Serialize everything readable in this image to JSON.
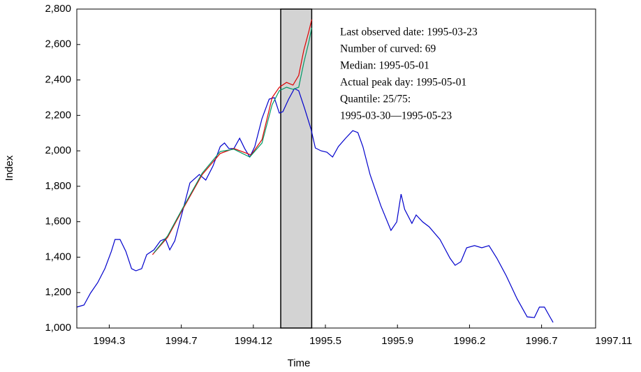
{
  "chart_data": {
    "type": "line",
    "x_label": "Time",
    "y_label": "Index",
    "xlim": [
      0,
      720
    ],
    "xticks": [
      {
        "value": 45,
        "label": "1994.3"
      },
      {
        "value": 145,
        "label": "1994.7"
      },
      {
        "value": 245,
        "label": "1994.12"
      },
      {
        "value": 345,
        "label": "1995.5"
      },
      {
        "value": 445,
        "label": "1995.9"
      },
      {
        "value": 545,
        "label": "1996.2"
      },
      {
        "value": 645,
        "label": "1996.7"
      },
      {
        "value": 745,
        "label": "1997.11"
      }
    ],
    "ylim": [
      1000,
      2800
    ],
    "yticks": [
      {
        "value": 1000,
        "label": "1,000"
      },
      {
        "value": 1200,
        "label": "1,200"
      },
      {
        "value": 1400,
        "label": "1,400"
      },
      {
        "value": 1600,
        "label": "1,600"
      },
      {
        "value": 1800,
        "label": "1,800"
      },
      {
        "value": 2000,
        "label": "2,000"
      },
      {
        "value": 2200,
        "label": "2,200"
      },
      {
        "value": 2400,
        "label": "2,400"
      },
      {
        "value": 2600,
        "label": "2,600"
      },
      {
        "value": 2800,
        "label": "2,800"
      }
    ],
    "shade": [
      283,
      326
    ],
    "annotations": [
      "Last observed date: 1995-03-23",
      "Number of curved: 69",
      "Median: 1995-05-01",
      "Actual peak day: 1995-05-01",
      "Quantile: 25/75:",
      "1995-03-30—1995-05-23"
    ],
    "series": [
      {
        "color": "#0000cc",
        "x": [
          0,
          10,
          19,
          29,
          39,
          48,
          53,
          60,
          68,
          76,
          82,
          90,
          97,
          107,
          116,
          123,
          129,
          136,
          147,
          157,
          170,
          179,
          189,
          199,
          205,
          211,
          218,
          226,
          233,
          240,
          247,
          257,
          267,
          274,
          281,
          286,
          294,
          302,
          308,
          316,
          325,
          331,
          339,
          347,
          355,
          363,
          373,
          383,
          390,
          397,
          407,
          422,
          436,
          444,
          450,
          455,
          465,
          471,
          480,
          489,
          504,
          518,
          525,
          533,
          541,
          552,
          562,
          572,
          583,
          596,
          611,
          625,
          635,
          642,
          649,
          656,
          661
        ],
        "values": [
          1118,
          1130,
          1197,
          1256,
          1335,
          1433,
          1500,
          1500,
          1433,
          1335,
          1323,
          1335,
          1414,
          1441,
          1492,
          1504,
          1441,
          1492,
          1662,
          1819,
          1866,
          1835,
          1914,
          2024,
          2044,
          2013,
          2013,
          2071,
          2013,
          1965,
          2024,
          2182,
          2292,
          2300,
          2213,
          2221,
          2292,
          2351,
          2339,
          2241,
          2123,
          2016,
          2000,
          1992,
          1965,
          2024,
          2071,
          2114,
          2103,
          2024,
          1866,
          1689,
          1551,
          1599,
          1756,
          1670,
          1591,
          1638,
          1599,
          1571,
          1500,
          1394,
          1354,
          1374,
          1453,
          1465,
          1453,
          1465,
          1394,
          1295,
          1165,
          1063,
          1059,
          1118,
          1118,
          1067,
          1032
        ]
      },
      {
        "color": "#dd0000",
        "x": [
          105,
          126,
          147,
          174,
          199,
          218,
          242,
          257,
          271,
          281,
          291,
          300,
          308,
          315,
          322,
          326
        ],
        "values": [
          1414,
          1512,
          1670,
          1866,
          1985,
          2013,
          1977,
          2063,
          2300,
          2359,
          2386,
          2371,
          2426,
          2568,
          2674,
          2741
        ]
      },
      {
        "color": "#009966",
        "x": [
          107,
          126,
          147,
          174,
          199,
          218,
          240,
          257,
          271,
          281,
          291,
          300,
          308,
          315,
          322,
          326
        ],
        "values": [
          1425,
          1520,
          1677,
          1874,
          1996,
          2009,
          1965,
          2044,
          2260,
          2339,
          2359,
          2347,
          2359,
          2497,
          2615,
          2694
        ]
      }
    ]
  }
}
